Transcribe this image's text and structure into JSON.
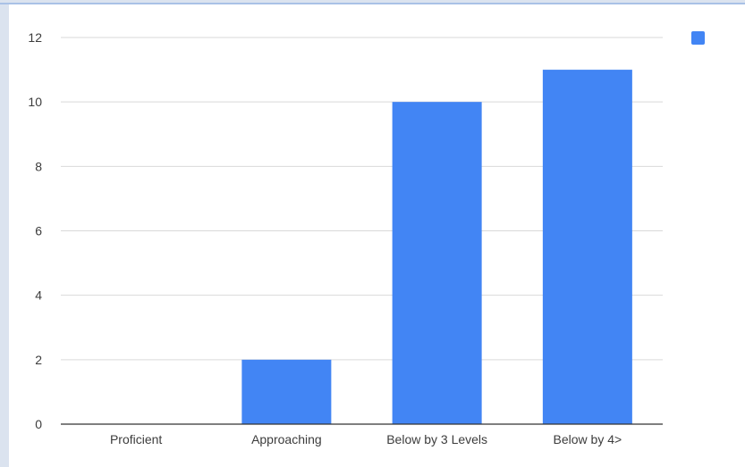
{
  "chart_data": {
    "type": "bar",
    "title": "",
    "xlabel": "",
    "ylabel": "",
    "categories": [
      "Proficient",
      "Approaching",
      "Below by 3 Levels",
      "Below by 4>"
    ],
    "series": [
      {
        "values": [
          0,
          2,
          10,
          11
        ]
      }
    ],
    "ylim": [
      0,
      12
    ],
    "yticks": [
      0,
      2,
      4,
      6,
      8,
      10,
      12
    ],
    "grid": true,
    "legend_placement": "top-right",
    "colors": {
      "bar": "#4285f4",
      "grid": "#d9d9d9",
      "axis": "#333333"
    }
  }
}
